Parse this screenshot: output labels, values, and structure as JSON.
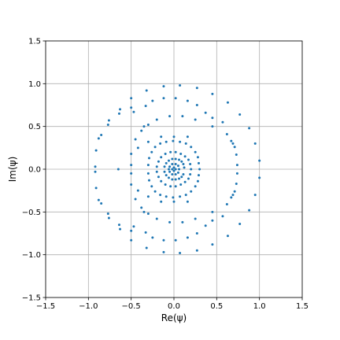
{
  "chart_data": {
    "type": "scatter",
    "title": "",
    "xlabel": "Re(ψ)",
    "ylabel": "Im(ψ)",
    "xlim": [
      -1.5,
      1.5
    ],
    "ylim": [
      -1.5,
      1.5
    ],
    "xticks": [
      -1.5,
      -1.0,
      -0.5,
      0.0,
      0.5,
      1.0,
      1.5
    ],
    "yticks": [
      -1.5,
      -1.0,
      -0.5,
      0.0,
      0.5,
      1.0,
      1.5
    ],
    "xtick_labels": [
      "−1.5",
      "−1.0",
      "−0.5",
      "0.0",
      "0.5",
      "1.0",
      "1.5"
    ],
    "ytick_labels": [
      "−1.5",
      "−1.0",
      "−0.5",
      "0.0",
      "0.5",
      "1.0",
      "1.5"
    ],
    "grid": true,
    "legend": "none",
    "colors": {
      "marker": "#1f77b4",
      "grid": "#b0b0b0",
      "axes": "#000000"
    },
    "series": [
      {
        "name": "",
        "points": [
          [
            1.0,
            0.1
          ],
          [
            1.0,
            -0.1
          ],
          [
            0.95,
            0.3
          ],
          [
            0.95,
            -0.3
          ],
          [
            0.88,
            0.48
          ],
          [
            0.88,
            -0.48
          ],
          [
            0.77,
            0.64
          ],
          [
            0.77,
            -0.64
          ],
          [
            0.63,
            0.78
          ],
          [
            0.63,
            -0.78
          ],
          [
            0.45,
            0.88
          ],
          [
            0.45,
            -0.88
          ],
          [
            0.27,
            0.95
          ],
          [
            0.27,
            -0.95
          ],
          [
            0.07,
            0.98
          ],
          [
            0.07,
            -0.98
          ],
          [
            -0.12,
            0.97
          ],
          [
            -0.12,
            -0.97
          ],
          [
            -0.32,
            0.92
          ],
          [
            -0.32,
            -0.92
          ],
          [
            -0.5,
            0.83
          ],
          [
            -0.5,
            -0.83
          ],
          [
            -0.63,
            0.7
          ],
          [
            -0.63,
            -0.7
          ],
          [
            -0.76,
            0.57
          ],
          [
            -0.76,
            -0.57
          ],
          [
            -0.85,
            0.4
          ],
          [
            -0.85,
            -0.4
          ],
          [
            -0.91,
            0.22
          ],
          [
            -0.91,
            -0.22
          ],
          [
            -0.92,
            0.03
          ],
          [
            -0.92,
            -0.03
          ],
          [
            -0.88,
            0.36
          ],
          [
            -0.88,
            -0.36
          ],
          [
            -0.77,
            0.52
          ],
          [
            -0.77,
            -0.52
          ],
          [
            -0.64,
            0.65
          ],
          [
            -0.64,
            -0.65
          ],
          [
            -0.5,
            0.72
          ],
          [
            -0.5,
            -0.72
          ],
          [
            0.74,
            0.05
          ],
          [
            0.74,
            -0.05
          ],
          [
            0.73,
            0.17
          ],
          [
            0.73,
            -0.17
          ],
          [
            0.71,
            0.26
          ],
          [
            0.71,
            -0.26
          ],
          [
            0.67,
            0.33
          ],
          [
            0.67,
            -0.33
          ],
          [
            0.62,
            0.41
          ],
          [
            0.62,
            -0.41
          ],
          [
            0.57,
            0.55
          ],
          [
            0.57,
            -0.55
          ],
          [
            0.45,
            0.6
          ],
          [
            0.45,
            -0.6
          ],
          [
            0.37,
            0.66
          ],
          [
            0.37,
            -0.66
          ],
          [
            0.27,
            0.75
          ],
          [
            0.27,
            -0.75
          ],
          [
            0.16,
            0.8
          ],
          [
            0.16,
            -0.8
          ],
          [
            0.02,
            0.83
          ],
          [
            0.02,
            -0.83
          ],
          [
            -0.12,
            0.83
          ],
          [
            -0.12,
            -0.83
          ],
          [
            -0.25,
            0.8
          ],
          [
            -0.25,
            -0.8
          ],
          [
            -0.33,
            0.74
          ],
          [
            -0.33,
            -0.74
          ],
          [
            -0.47,
            0.67
          ],
          [
            -0.47,
            -0.67
          ],
          [
            -0.65,
            0.0
          ],
          [
            0.69,
            0.3
          ],
          [
            0.69,
            -0.3
          ],
          [
            -0.05,
            0.62
          ],
          [
            -0.05,
            -0.62
          ],
          [
            0.1,
            0.62
          ],
          [
            0.1,
            -0.62
          ],
          [
            0.25,
            0.58
          ],
          [
            0.25,
            -0.58
          ],
          [
            0.45,
            0.5
          ],
          [
            0.45,
            -0.5
          ],
          [
            -0.2,
            0.58
          ],
          [
            -0.2,
            -0.58
          ],
          [
            -0.35,
            0.5
          ],
          [
            -0.35,
            -0.5
          ],
          [
            -0.45,
            0.35
          ],
          [
            -0.45,
            -0.35
          ],
          [
            -0.5,
            0.18
          ],
          [
            -0.5,
            -0.18
          ],
          [
            -0.5,
            0.05
          ],
          [
            -0.5,
            -0.05
          ],
          [
            -0.42,
            0.25
          ],
          [
            -0.42,
            -0.25
          ],
          [
            -0.38,
            0.45
          ],
          [
            -0.38,
            -0.45
          ],
          [
            -0.3,
            0.52
          ],
          [
            -0.3,
            -0.52
          ],
          [
            0.3,
            0.0
          ],
          [
            0.29,
            0.07
          ],
          [
            0.29,
            -0.07
          ],
          [
            0.28,
            0.14
          ],
          [
            0.28,
            -0.14
          ],
          [
            0.25,
            0.2
          ],
          [
            0.25,
            -0.2
          ],
          [
            0.2,
            0.26
          ],
          [
            0.2,
            -0.26
          ],
          [
            0.14,
            0.3
          ],
          [
            0.14,
            -0.3
          ],
          [
            0.07,
            0.32
          ],
          [
            0.07,
            -0.32
          ],
          [
            -0.01,
            0.33
          ],
          [
            -0.01,
            -0.33
          ],
          [
            -0.09,
            0.32
          ],
          [
            -0.09,
            -0.32
          ],
          [
            -0.16,
            0.3
          ],
          [
            -0.16,
            -0.3
          ],
          [
            -0.22,
            0.26
          ],
          [
            -0.22,
            -0.26
          ],
          [
            -0.26,
            0.2
          ],
          [
            -0.26,
            -0.2
          ],
          [
            -0.29,
            0.13
          ],
          [
            -0.29,
            -0.13
          ],
          [
            -0.3,
            0.05
          ],
          [
            -0.3,
            -0.05
          ],
          [
            0.16,
            0.38
          ],
          [
            0.16,
            -0.38
          ],
          [
            0.0,
            0.38
          ],
          [
            0.0,
            -0.38
          ],
          [
            -0.15,
            0.38
          ],
          [
            -0.15,
            -0.38
          ],
          [
            -0.3,
            0.32
          ],
          [
            -0.3,
            -0.32
          ],
          [
            0.2,
            0.0
          ],
          [
            0.19,
            0.06
          ],
          [
            0.19,
            -0.06
          ],
          [
            0.17,
            0.11
          ],
          [
            0.17,
            -0.11
          ],
          [
            0.13,
            0.15
          ],
          [
            0.13,
            -0.15
          ],
          [
            0.08,
            0.18
          ],
          [
            0.08,
            -0.18
          ],
          [
            0.02,
            0.2
          ],
          [
            0.02,
            -0.2
          ],
          [
            -0.04,
            0.2
          ],
          [
            -0.04,
            -0.2
          ],
          [
            -0.1,
            0.18
          ],
          [
            -0.1,
            -0.18
          ],
          [
            -0.15,
            0.14
          ],
          [
            -0.15,
            -0.14
          ],
          [
            -0.18,
            0.09
          ],
          [
            -0.18,
            -0.09
          ],
          [
            -0.2,
            0.03
          ],
          [
            -0.2,
            -0.03
          ],
          [
            0.12,
            0.02
          ],
          [
            0.11,
            0.06
          ],
          [
            0.11,
            -0.06
          ],
          [
            0.09,
            0.09
          ],
          [
            0.09,
            -0.09
          ],
          [
            0.06,
            0.11
          ],
          [
            0.06,
            -0.11
          ],
          [
            0.02,
            0.12
          ],
          [
            0.02,
            -0.12
          ],
          [
            -0.02,
            0.12
          ],
          [
            -0.02,
            -0.12
          ],
          [
            -0.06,
            0.1
          ],
          [
            -0.06,
            -0.1
          ],
          [
            -0.09,
            0.07
          ],
          [
            -0.09,
            -0.07
          ],
          [
            -0.11,
            0.03
          ],
          [
            -0.11,
            -0.03
          ],
          [
            0.06,
            0.0
          ],
          [
            0.05,
            0.04
          ],
          [
            0.05,
            -0.04
          ],
          [
            0.02,
            0.06
          ],
          [
            0.02,
            -0.06
          ],
          [
            -0.02,
            0.06
          ],
          [
            -0.02,
            -0.06
          ],
          [
            -0.05,
            0.03
          ],
          [
            -0.05,
            -0.03
          ],
          [
            -0.06,
            0.0
          ],
          [
            0.02,
            0.0
          ],
          [
            -0.02,
            0.0
          ],
          [
            0.0,
            0.02
          ],
          [
            0.0,
            -0.02
          ]
        ]
      }
    ]
  }
}
